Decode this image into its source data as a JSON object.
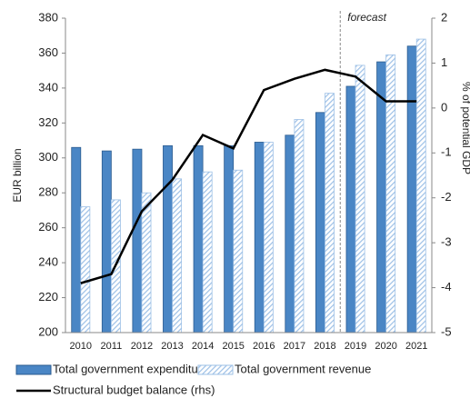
{
  "chart_data": {
    "type": "bar-line",
    "y_label": "EUR billion",
    "y2_label": "% of potential GDP",
    "annotation": "forecast",
    "categories": [
      "2010",
      "2011",
      "2012",
      "2013",
      "2014",
      "2015",
      "2016",
      "2017",
      "2018",
      "2019",
      "2020",
      "2021"
    ],
    "series": [
      {
        "name": "Total government expenditure",
        "type": "bar",
        "color": "#4a86c5",
        "values": [
          306,
          304,
          305,
          307,
          307,
          307,
          309,
          313,
          326,
          341,
          355,
          364
        ]
      },
      {
        "name": "Total government revenue",
        "type": "bar",
        "color": "#9dc0e6",
        "pattern": "hatch",
        "values": [
          272,
          276,
          280,
          288,
          292,
          293,
          309,
          322,
          337,
          353,
          359,
          368
        ]
      },
      {
        "name": "Structural budget balance (rhs)",
        "type": "line",
        "axis": "y2",
        "color": "#000000",
        "values": [
          -3.9,
          -3.7,
          -2.3,
          -1.6,
          -0.6,
          -0.9,
          0.4,
          0.65,
          0.85,
          0.7,
          0.15,
          0.15
        ]
      }
    ],
    "ylim": [
      200,
      380
    ],
    "yticks": [
      200,
      220,
      240,
      260,
      280,
      300,
      320,
      340,
      360,
      380
    ],
    "y2lim": [
      -5,
      2
    ],
    "y2ticks": [
      -5,
      -4,
      -3,
      -2,
      -1,
      0,
      1,
      2
    ]
  }
}
